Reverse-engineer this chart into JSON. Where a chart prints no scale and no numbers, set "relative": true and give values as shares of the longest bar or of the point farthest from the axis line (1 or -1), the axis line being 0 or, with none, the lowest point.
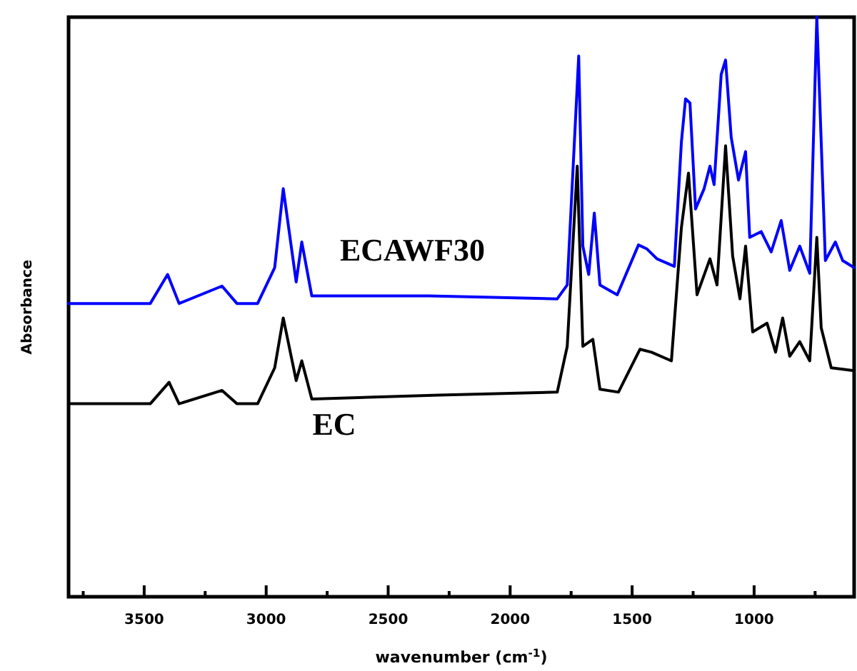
{
  "chart_data": {
    "type": "line",
    "relative": true,
    "xlabel": "wavenumber (cm$^{-1}$)",
    "ylabel": "Absorbance",
    "xlim": [
      3810,
      590
    ],
    "xticks": [
      {
        "value": 3750,
        "label": null
      },
      3500,
      {
        "value": 3250,
        "label": null
      },
      3000,
      {
        "value": 2750,
        "label": null
      },
      2500,
      {
        "value": 2250,
        "label": null
      },
      2000,
      {
        "value": 1750,
        "label": null
      },
      1500,
      {
        "value": 1250,
        "label": null
      },
      1000,
      {
        "value": 750,
        "label": null
      }
    ],
    "grid": false,
    "legend": false,
    "marker": "none",
    "line_style": "solid",
    "series": [
      {
        "name": "ECAWF30",
        "color": "#0000ff",
        "x": [
          3810,
          3475,
          3404,
          3357,
          3181,
          3120,
          3035,
          2965,
          2930,
          2877,
          2854,
          2813,
          2333,
          1807,
          1766,
          1719,
          1702,
          1678,
          1655,
          1632,
          1561,
          1474,
          1439,
          1398,
          1327,
          1298,
          1281,
          1263,
          1240,
          1205,
          1181,
          1164,
          1135,
          1117,
          1094,
          1064,
          1035,
          1018,
          971,
          930,
          889,
          854,
          813,
          772,
          743,
          725,
          708,
          667,
          637,
          591
        ],
        "values": [
          0.506,
          0.506,
          0.556,
          0.506,
          0.536,
          0.506,
          0.506,
          0.568,
          0.704,
          0.543,
          0.612,
          0.519,
          0.519,
          0.514,
          0.538,
          0.933,
          0.605,
          0.556,
          0.662,
          0.538,
          0.521,
          0.607,
          0.6,
          0.583,
          0.57,
          0.785,
          0.859,
          0.852,
          0.669,
          0.704,
          0.743,
          0.711,
          0.901,
          0.926,
          0.793,
          0.719,
          0.768,
          0.62,
          0.63,
          0.595,
          0.649,
          0.563,
          0.605,
          0.558,
          1.0,
          0.785,
          0.58,
          0.612,
          0.58,
          0.568
        ]
      },
      {
        "name": "EC",
        "color": "#000000",
        "x": [
          3810,
          3475,
          3398,
          3357,
          3181,
          3120,
          3035,
          2965,
          2930,
          2877,
          2854,
          2813,
          2292,
          1807,
          1766,
          1725,
          1702,
          1661,
          1632,
          1556,
          1468,
          1421,
          1339,
          1298,
          1269,
          1234,
          1181,
          1152,
          1117,
          1088,
          1058,
          1035,
          1006,
          947,
          912,
          883,
          854,
          813,
          772,
          743,
          725,
          684,
          591
        ],
        "values": [
          0.333,
          0.333,
          0.37,
          0.333,
          0.356,
          0.333,
          0.333,
          0.395,
          0.481,
          0.373,
          0.407,
          0.341,
          0.348,
          0.353,
          0.432,
          0.743,
          0.432,
          0.444,
          0.358,
          0.353,
          0.427,
          0.422,
          0.407,
          0.637,
          0.731,
          0.521,
          0.583,
          0.538,
          0.778,
          0.588,
          0.514,
          0.605,
          0.457,
          0.472,
          0.422,
          0.481,
          0.415,
          0.44,
          0.407,
          0.62,
          0.464,
          0.395,
          0.39
        ]
      }
    ]
  }
}
